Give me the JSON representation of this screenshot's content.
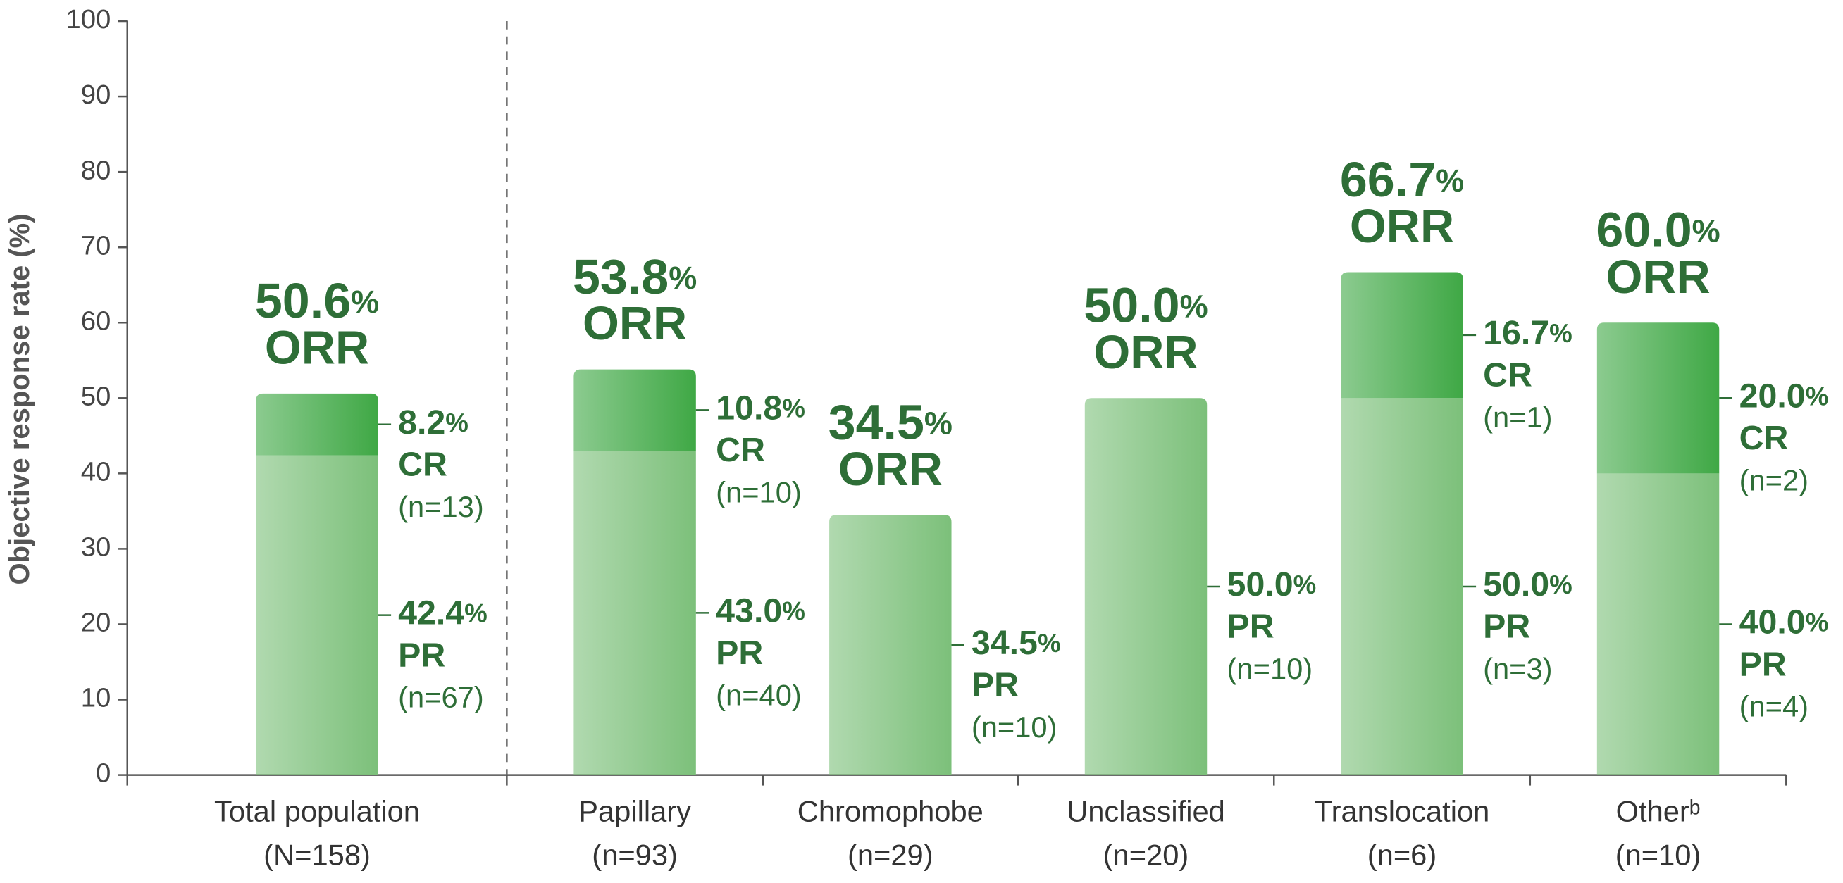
{
  "chart_data": {
    "type": "stacked_bar",
    "y_label": "Objective response rate (%)",
    "categories": [
      "Total population",
      "Papillary",
      "Chromophobe",
      "Unclassified",
      "Translocation",
      "Otherᵇ"
    ],
    "category_counts": [
      "(N=158)",
      "(n=93)",
      "(n=29)",
      "(n=20)",
      "(n=6)",
      "(n=10)"
    ],
    "ylim": [
      0,
      100
    ],
    "yticks": [
      0,
      10,
      20,
      30,
      40,
      50,
      60,
      70,
      80,
      90,
      100
    ],
    "grid": false,
    "series": [
      {
        "name": "PR",
        "color": "#7cc07a",
        "values": [
          42.4,
          43.0,
          34.5,
          50.0,
          50.0,
          40.0
        ],
        "value_labels": [
          "42.4%",
          "43.0%",
          "34.5%",
          "50.0%",
          "50.0%",
          "40.0%"
        ],
        "counts": [
          "(n=67)",
          "(n=40)",
          "(n=10)",
          "(n=10)",
          "(n=3)",
          "(n=4)"
        ]
      },
      {
        "name": "CR",
        "color": "#3fa845",
        "values": [
          8.2,
          10.8,
          null,
          null,
          16.7,
          20.0
        ],
        "value_labels": [
          "8.2%",
          "10.8%",
          null,
          null,
          "16.7%",
          "20.0%"
        ],
        "counts": [
          "(n=13)",
          "(n=10)",
          null,
          null,
          "(n=1)",
          "(n=2)"
        ]
      }
    ],
    "orr": {
      "name": "ORR",
      "values": [
        50.6,
        53.8,
        34.5,
        50.0,
        66.7,
        60.0
      ],
      "value_labels": [
        "50.6%",
        "53.8%",
        "34.5%",
        "50.0%",
        "66.7%",
        "60.0%"
      ]
    }
  }
}
